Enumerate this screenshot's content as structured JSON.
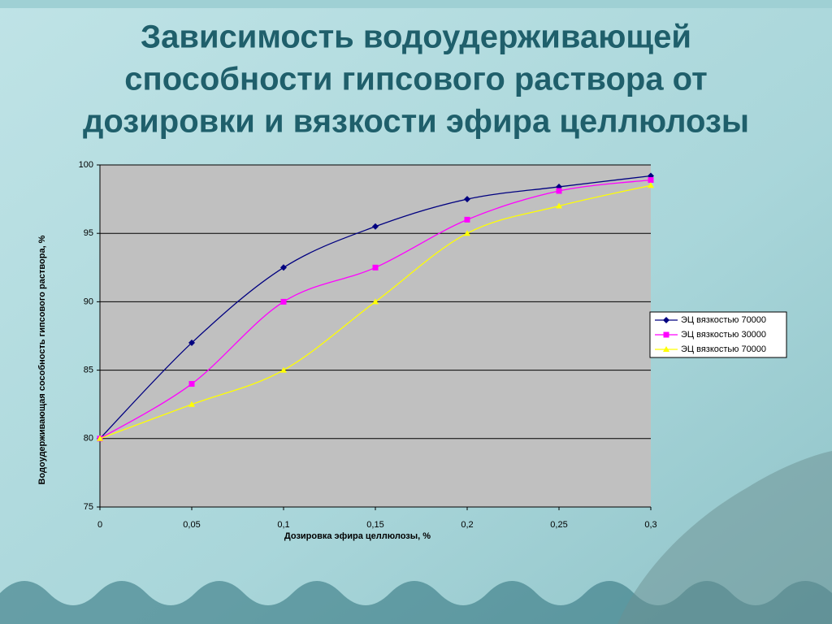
{
  "chart_data": {
    "type": "line",
    "title": [
      "Зависимость водоудерживающей",
      "способности гипсового раствора от",
      "дозировки и вязкости эфира целлюлозы"
    ],
    "x_label": "Дозировка эфира целлюлозы, %",
    "y_label": "Водоудерживающая сособность гипсового раствора, %",
    "x": [
      0,
      0.05,
      0.1,
      0.15,
      0.2,
      0.25,
      0.3
    ],
    "xlim": [
      0,
      0.3
    ],
    "xticks": [
      0,
      {
        "value": 0.05,
        "label": "0,05"
      },
      {
        "value": 0.1,
        "label": "0,1"
      },
      {
        "value": 0.15,
        "label": "0,15"
      },
      {
        "value": 0.2,
        "label": "0,2"
      },
      {
        "value": 0.25,
        "label": "0,25"
      },
      {
        "value": 0.3,
        "label": "0,3"
      }
    ],
    "ylim": [
      75,
      100
    ],
    "yticks": [
      75,
      80,
      85,
      90,
      95,
      100
    ],
    "grid": true,
    "legend": "right",
    "series": [
      {
        "name": "ЭЦ вязкостью 70000",
        "color": "#000080",
        "marker": "diamond",
        "values": [
          80,
          87,
          92.5,
          95.5,
          97.5,
          98.4,
          99.2
        ]
      },
      {
        "name": "ЭЦ вязкостью 30000",
        "color": "#ff00ff",
        "marker": "square",
        "values": [
          80,
          84,
          90,
          92.5,
          96,
          98.1,
          98.9
        ]
      },
      {
        "name": "ЭЦ вязкостью 70000",
        "color": "#ffff00",
        "marker": "triangle",
        "values": [
          80,
          82.5,
          85,
          90,
          95,
          97,
          98.5
        ]
      }
    ]
  }
}
